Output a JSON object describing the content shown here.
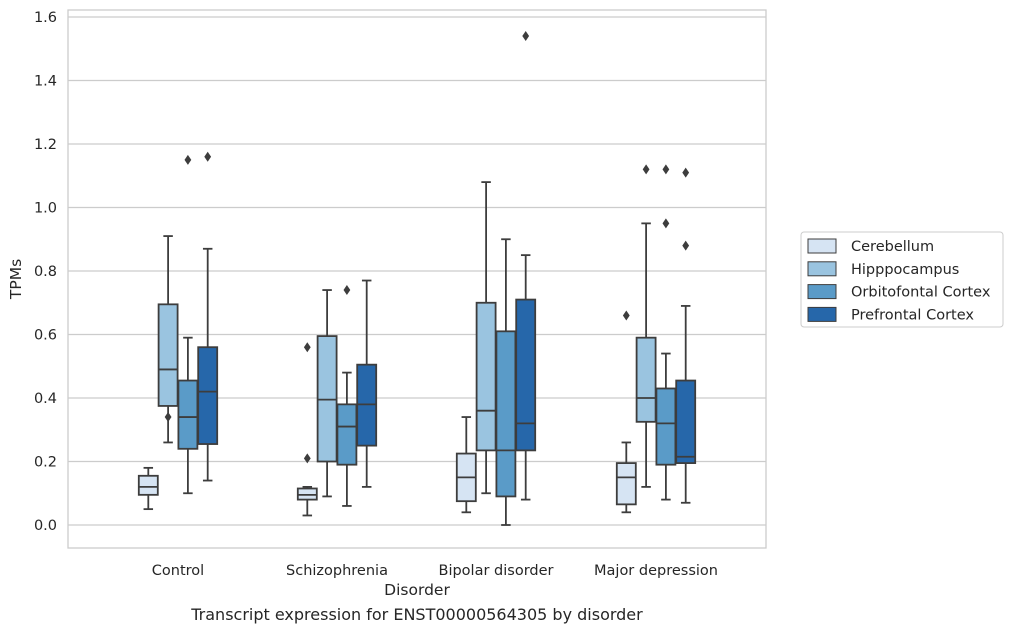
{
  "caption": "Transcript expression for ENST00000564305 by disorder",
  "chart_data": {
    "type": "box",
    "title": "",
    "xlabel": "Disorder",
    "ylabel": "TPMs",
    "ylim": [
      -0.075,
      1.62
    ],
    "yticks": [
      0.0,
      0.2,
      0.4,
      0.6,
      0.8,
      1.0,
      1.2,
      1.4,
      1.6
    ],
    "ytick_labels": [
      "0.0",
      "0.2",
      "0.4",
      "0.6",
      "0.8",
      "1.0",
      "1.2",
      "1.4",
      "1.6"
    ],
    "grid": "horizontal",
    "legend": "right",
    "categories": [
      "Control",
      "Schizophrenia",
      "Bipolar disorder",
      "Major depression"
    ],
    "series": [
      {
        "name": "Cerebellum",
        "color": "#d6e4f3",
        "boxes": [
          {
            "whislo": 0.05,
            "q1": 0.095,
            "med": 0.12,
            "q3": 0.155,
            "whishi": 0.18,
            "fliers": []
          },
          {
            "whislo": 0.03,
            "q1": 0.08,
            "med": 0.095,
            "q3": 0.115,
            "whishi": 0.12,
            "fliers": [
              0.21,
              0.56
            ]
          },
          {
            "whislo": 0.04,
            "q1": 0.075,
            "med": 0.15,
            "q3": 0.225,
            "whishi": 0.34,
            "fliers": []
          },
          {
            "whislo": 0.04,
            "q1": 0.065,
            "med": 0.15,
            "q3": 0.195,
            "whishi": 0.26,
            "fliers": [
              0.66
            ]
          }
        ]
      },
      {
        "name": "Hipppocampus",
        "color": "#9ac4e0",
        "boxes": [
          {
            "whislo": 0.26,
            "q1": 0.375,
            "med": 0.49,
            "q3": 0.695,
            "whishi": 0.91,
            "fliers": [
              0.34
            ]
          },
          {
            "whislo": 0.09,
            "q1": 0.2,
            "med": 0.395,
            "q3": 0.595,
            "whishi": 0.74,
            "fliers": []
          },
          {
            "whislo": 0.1,
            "q1": 0.235,
            "med": 0.36,
            "q3": 0.7,
            "whishi": 1.08,
            "fliers": []
          },
          {
            "whislo": 0.12,
            "q1": 0.325,
            "med": 0.4,
            "q3": 0.59,
            "whishi": 0.95,
            "fliers": [
              1.12
            ]
          }
        ]
      },
      {
        "name": "Orbitofontal Cortex",
        "color": "#5a9bc8",
        "boxes": [
          {
            "whislo": 0.1,
            "q1": 0.24,
            "med": 0.34,
            "q3": 0.455,
            "whishi": 0.59,
            "fliers": [
              1.15
            ]
          },
          {
            "whislo": 0.06,
            "q1": 0.19,
            "med": 0.31,
            "q3": 0.38,
            "whishi": 0.48,
            "fliers": [
              0.74
            ]
          },
          {
            "whislo": 0.0,
            "q1": 0.09,
            "med": 0.235,
            "q3": 0.61,
            "whishi": 0.9,
            "fliers": []
          },
          {
            "whislo": 0.08,
            "q1": 0.19,
            "med": 0.32,
            "q3": 0.43,
            "whishi": 0.54,
            "fliers": [
              0.95,
              1.12
            ]
          }
        ]
      },
      {
        "name": "Prefrontal Cortex",
        "color": "#2667aa",
        "boxes": [
          {
            "whislo": 0.14,
            "q1": 0.255,
            "med": 0.42,
            "q3": 0.56,
            "whishi": 0.87,
            "fliers": [
              1.16
            ]
          },
          {
            "whislo": 0.12,
            "q1": 0.25,
            "med": 0.38,
            "q3": 0.505,
            "whishi": 0.77,
            "fliers": []
          },
          {
            "whislo": 0.08,
            "q1": 0.235,
            "med": 0.32,
            "q3": 0.71,
            "whishi": 0.85,
            "fliers": [
              1.54
            ]
          },
          {
            "whislo": 0.07,
            "q1": 0.195,
            "med": 0.215,
            "q3": 0.455,
            "whishi": 0.69,
            "fliers": [
              0.88,
              1.11
            ]
          }
        ]
      }
    ]
  }
}
